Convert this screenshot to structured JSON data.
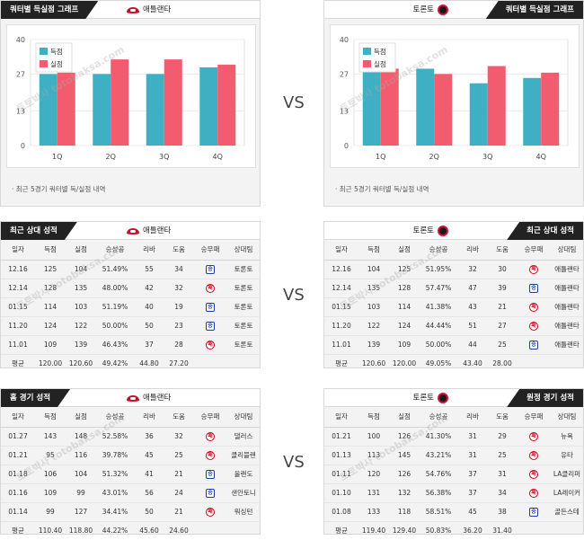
{
  "vs_label": "VS",
  "watermark": "토토박사 totobaksa.com",
  "chart_note": "최근 5경기 쿼터별 득/실점 내역",
  "charts": {
    "atlanta": {
      "tab": "쿼터별 득실점 그래프",
      "team": "애틀랜타",
      "chart_data": {
        "type": "bar",
        "categories": [
          "1Q",
          "2Q",
          "3Q",
          "4Q"
        ],
        "series": [
          {
            "name": "득점",
            "values": [
              27,
              27,
              27,
              29.5
            ],
            "color": "#3fb0c4"
          },
          {
            "name": "실점",
            "values": [
              27.5,
              32.5,
              32.5,
              30.5
            ],
            "color": "#f25c6e"
          }
        ],
        "yticks": [
          0,
          13,
          27,
          40
        ],
        "ylim": [
          0,
          40
        ],
        "legend": "top-left"
      }
    },
    "toronto": {
      "tab": "쿼터별 득실점 그래프",
      "team": "토론토",
      "chart_data": {
        "type": "bar",
        "categories": [
          "1Q",
          "2Q",
          "3Q",
          "4Q"
        ],
        "series": [
          {
            "name": "득점",
            "values": [
              30.5,
              29,
              23.5,
              25.5
            ],
            "color": "#3fb0c4"
          },
          {
            "name": "실점",
            "values": [
              29,
              27,
              30,
              27.5
            ],
            "color": "#f25c6e"
          }
        ],
        "yticks": [
          0,
          13,
          27,
          40
        ],
        "ylim": [
          0,
          40
        ],
        "legend": "top-left"
      }
    }
  },
  "columns_left": [
    "일자",
    "득점",
    "실점",
    "승성공",
    "리바",
    "도움",
    "승무패",
    "상대팀"
  ],
  "columns_right": [
    "일자",
    "득점",
    "실점",
    "승성공",
    "리바",
    "도움",
    "승무패",
    "상대팀"
  ],
  "recent": {
    "left": {
      "tab": "최근 상대 성적",
      "team": "애틀랜타",
      "rows": [
        {
          "date": "12.16",
          "pts": "125",
          "opp": "104",
          "pct": "51.49%",
          "reb": "55",
          "ast": "34",
          "result": "승",
          "team": "토론토"
        },
        {
          "date": "12.14",
          "pts": "128",
          "opp": "135",
          "pct": "48.00%",
          "reb": "42",
          "ast": "32",
          "result": "패",
          "team": "토론토"
        },
        {
          "date": "01.15",
          "pts": "114",
          "opp": "103",
          "pct": "51.19%",
          "reb": "40",
          "ast": "19",
          "result": "승",
          "team": "토론토"
        },
        {
          "date": "11.20",
          "pts": "124",
          "opp": "122",
          "pct": "50.00%",
          "reb": "50",
          "ast": "23",
          "result": "승",
          "team": "토론토"
        },
        {
          "date": "11.01",
          "pts": "109",
          "opp": "139",
          "pct": "46.43%",
          "reb": "37",
          "ast": "28",
          "result": "패",
          "team": "토론토"
        }
      ],
      "avg": {
        "label": "평균",
        "pts": "120.00",
        "opp": "120.60",
        "pct": "49.42%",
        "reb": "44.80",
        "ast": "27.20",
        "result": "",
        "team": ""
      }
    },
    "right": {
      "tab": "최근 상대 성적",
      "team": "토론토",
      "rows": [
        {
          "date": "12.16",
          "pts": "104",
          "opp": "125",
          "pct": "51.95%",
          "reb": "32",
          "ast": "30",
          "result": "패",
          "team": "애틀랜타"
        },
        {
          "date": "12.14",
          "pts": "135",
          "opp": "128",
          "pct": "57.47%",
          "reb": "47",
          "ast": "39",
          "result": "승",
          "team": "애틀랜타"
        },
        {
          "date": "01.15",
          "pts": "103",
          "opp": "114",
          "pct": "41.38%",
          "reb": "43",
          "ast": "21",
          "result": "패",
          "team": "애틀랜타"
        },
        {
          "date": "11.20",
          "pts": "122",
          "opp": "124",
          "pct": "44.44%",
          "reb": "51",
          "ast": "27",
          "result": "패",
          "team": "애틀랜타"
        },
        {
          "date": "11.01",
          "pts": "139",
          "opp": "109",
          "pct": "50.00%",
          "reb": "44",
          "ast": "25",
          "result": "승",
          "team": "애틀랜타"
        }
      ],
      "avg": {
        "label": "평균",
        "pts": "120.60",
        "opp": "120.00",
        "pct": "49.05%",
        "reb": "43.40",
        "ast": "28.00",
        "result": "",
        "team": ""
      }
    }
  },
  "venue": {
    "left": {
      "tab": "홈 경기 성적",
      "team": "애틀랜타",
      "rows": [
        {
          "date": "01.27",
          "pts": "143",
          "opp": "148",
          "pct": "52.58%",
          "reb": "36",
          "ast": "32",
          "result": "패",
          "team": "댈러스"
        },
        {
          "date": "01.21",
          "pts": "95",
          "opp": "116",
          "pct": "39.78%",
          "reb": "45",
          "ast": "25",
          "result": "패",
          "team": "클리블랜"
        },
        {
          "date": "01.18",
          "pts": "106",
          "opp": "104",
          "pct": "51.32%",
          "reb": "41",
          "ast": "21",
          "result": "승",
          "team": "올랜도"
        },
        {
          "date": "01.16",
          "pts": "109",
          "opp": "99",
          "pct": "43.01%",
          "reb": "56",
          "ast": "24",
          "result": "승",
          "team": "샌안토니"
        },
        {
          "date": "01.14",
          "pts": "99",
          "opp": "127",
          "pct": "34.41%",
          "reb": "50",
          "ast": "21",
          "result": "패",
          "team": "워싱턴"
        }
      ],
      "avg": {
        "label": "평균",
        "pts": "110.40",
        "opp": "118.80",
        "pct": "44.22%",
        "reb": "45.60",
        "ast": "24.60",
        "result": "",
        "team": ""
      }
    },
    "right": {
      "tab": "원정 경기 성적",
      "team": "토론토",
      "rows": [
        {
          "date": "01.21",
          "pts": "100",
          "opp": "126",
          "pct": "41.30%",
          "reb": "31",
          "ast": "29",
          "result": "패",
          "team": "뉴욕"
        },
        {
          "date": "01.13",
          "pts": "113",
          "opp": "145",
          "pct": "43.21%",
          "reb": "31",
          "ast": "25",
          "result": "패",
          "team": "유타"
        },
        {
          "date": "01.11",
          "pts": "120",
          "opp": "126",
          "pct": "54.76%",
          "reb": "37",
          "ast": "31",
          "result": "패",
          "team": "LA클리퍼"
        },
        {
          "date": "01.10",
          "pts": "131",
          "opp": "132",
          "pct": "56.38%",
          "reb": "37",
          "ast": "34",
          "result": "패",
          "team": "LA레이커"
        },
        {
          "date": "01.08",
          "pts": "133",
          "opp": "118",
          "pct": "58.51%",
          "reb": "45",
          "ast": "38",
          "result": "승",
          "team": "골든스테"
        }
      ],
      "avg": {
        "label": "평균",
        "pts": "119.40",
        "opp": "129.40",
        "pct": "50.83%",
        "reb": "36.20",
        "ast": "31.40",
        "result": "",
        "team": ""
      }
    }
  }
}
